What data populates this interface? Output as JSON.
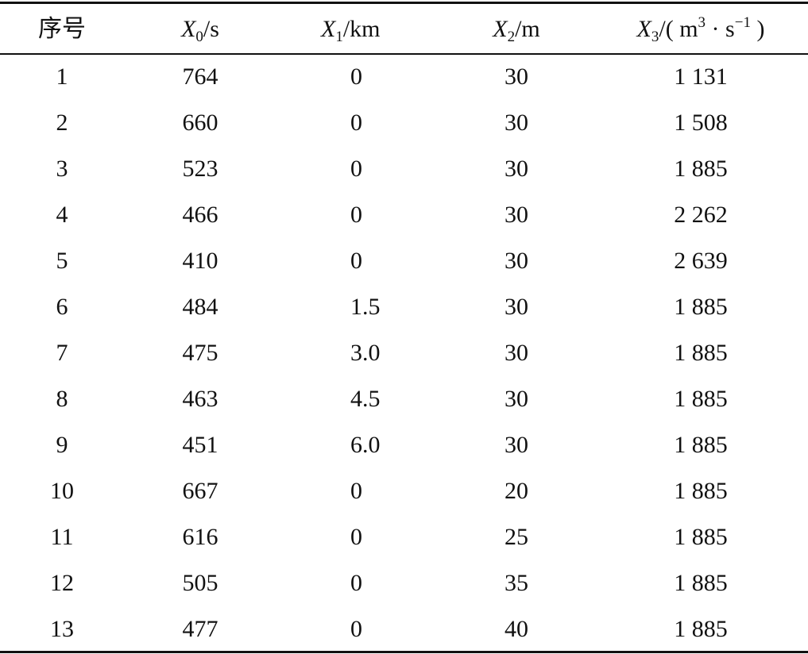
{
  "table": {
    "header": [
      "序号",
      {
        "symbol": "X",
        "subscript": "0",
        "unit_parts": [
          "/s"
        ]
      },
      {
        "symbol": "X",
        "subscript": "1",
        "unit_parts": [
          "/km"
        ]
      },
      {
        "symbol": "X",
        "subscript": "2",
        "unit_parts": [
          "/m"
        ]
      },
      {
        "symbol": "X",
        "subscript": "3",
        "unit_parts": [
          "/( m",
          "3",
          " · s",
          "−1",
          " )"
        ]
      }
    ],
    "rows": [
      [
        "1",
        "764",
        "0",
        "30",
        "1 131"
      ],
      [
        "2",
        "660",
        "0",
        "30",
        "1 508"
      ],
      [
        "3",
        "523",
        "0",
        "30",
        "1 885"
      ],
      [
        "4",
        "466",
        "0",
        "30",
        "2 262"
      ],
      [
        "5",
        "410",
        "0",
        "30",
        "2 639"
      ],
      [
        "6",
        "484",
        "1.5",
        "30",
        "1 885"
      ],
      [
        "7",
        "475",
        "3.0",
        "30",
        "1 885"
      ],
      [
        "8",
        "463",
        "4.5",
        "30",
        "1 885"
      ],
      [
        "9",
        "451",
        "6.0",
        "30",
        "1 885"
      ],
      [
        "10",
        "667",
        "0",
        "20",
        "1 885"
      ],
      [
        "11",
        "616",
        "0",
        "25",
        "1 885"
      ],
      [
        "12",
        "505",
        "0",
        "35",
        "1 885"
      ],
      [
        "13",
        "477",
        "0",
        "40",
        "1 885"
      ]
    ]
  }
}
